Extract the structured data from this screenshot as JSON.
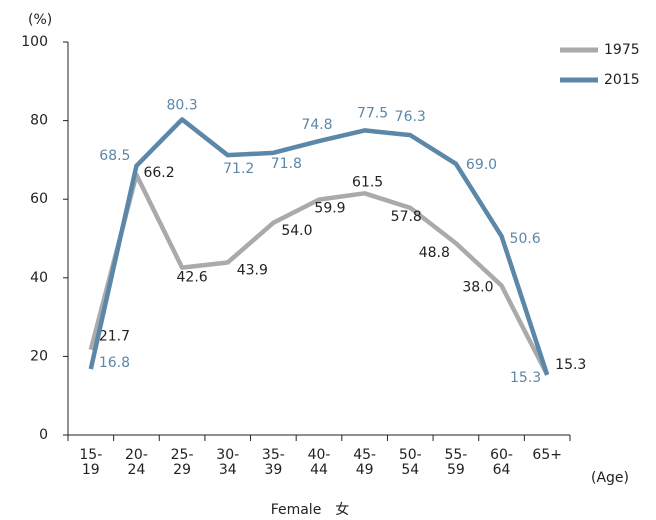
{
  "chart_data": {
    "type": "line",
    "y_unit": "(%)",
    "x_label": "(Age)",
    "footer": "Female　女",
    "categories": [
      "15-\n19",
      "20-\n24",
      "25-\n29",
      "30-\n34",
      "35-\n39",
      "40-\n44",
      "45-\n49",
      "50-\n54",
      "55-\n59",
      "60-\n64",
      "65+"
    ],
    "series": [
      {
        "name": "1975",
        "color": "#aaaaaa",
        "label_color": "#222222",
        "values": [
          21.7,
          66.2,
          42.6,
          43.9,
          54.0,
          59.9,
          61.5,
          57.8,
          48.8,
          38.0,
          15.3
        ],
        "value_labels": [
          "21.7",
          "66.2",
          "42.6",
          "43.9",
          "54.0",
          "59.9",
          "61.5",
          "57.8",
          "48.8",
          "38.0",
          "15.3"
        ]
      },
      {
        "name": "2015",
        "color": "#5b87a8",
        "label_color": "#5b87a8",
        "values": [
          16.8,
          68.5,
          80.3,
          71.2,
          71.8,
          74.8,
          77.5,
          76.3,
          69.0,
          50.6,
          15.3
        ],
        "value_labels": [
          "16.8",
          "68.5",
          "80.3",
          "71.2",
          "71.8",
          "74.8",
          "77.5",
          "76.3",
          "69.0",
          "50.6",
          "15.3"
        ]
      }
    ],
    "ylim": [
      0,
      100
    ],
    "yticks": [
      0,
      20,
      40,
      60,
      80,
      100
    ],
    "grid": false,
    "legend": "top-right"
  }
}
